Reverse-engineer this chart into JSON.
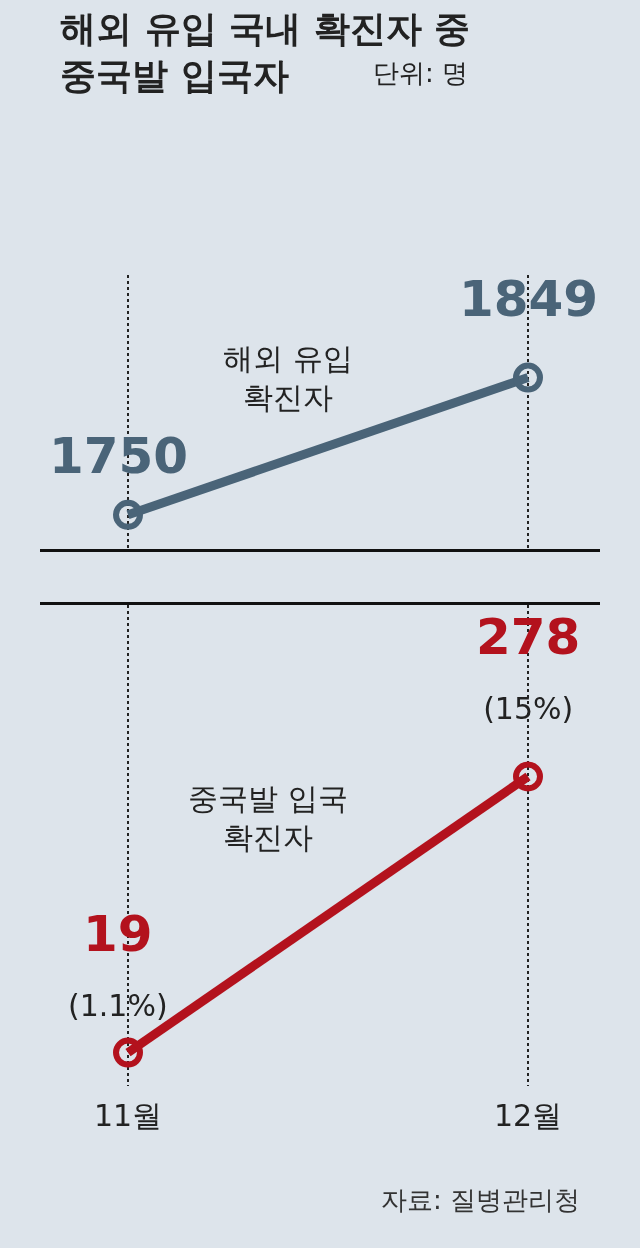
{
  "chart_data": [
    {
      "type": "line",
      "title": "해외 유입 국내 확진자 중\n중국발 입국자",
      "subtitle": "단위: 명",
      "categories": [
        null,
        null
      ],
      "series": [
        {
          "name": "해외 유입\n확진자",
          "color": "#4a6478",
          "values": [
            1750,
            1849
          ]
        }
      ],
      "data_labels": true,
      "grid": "x",
      "marker": "circle",
      "line_style": "solid",
      "tick_labels": false,
      "legend": false
    },
    {
      "type": "line",
      "categories": [
        "11월",
        "12월"
      ],
      "series": [
        {
          "name": "중국발 입국\n확진자",
          "color": "#b3121d",
          "values": [
            19,
            278
          ],
          "value_labels": [
            "19\n(1.1%)",
            "278\n(15%)"
          ]
        }
      ],
      "grid": "x",
      "marker": "circle",
      "line_style": "solid",
      "tick_labels": "x",
      "legend": false,
      "annotations": [
        "자료: 질병관리청"
      ]
    }
  ]
}
